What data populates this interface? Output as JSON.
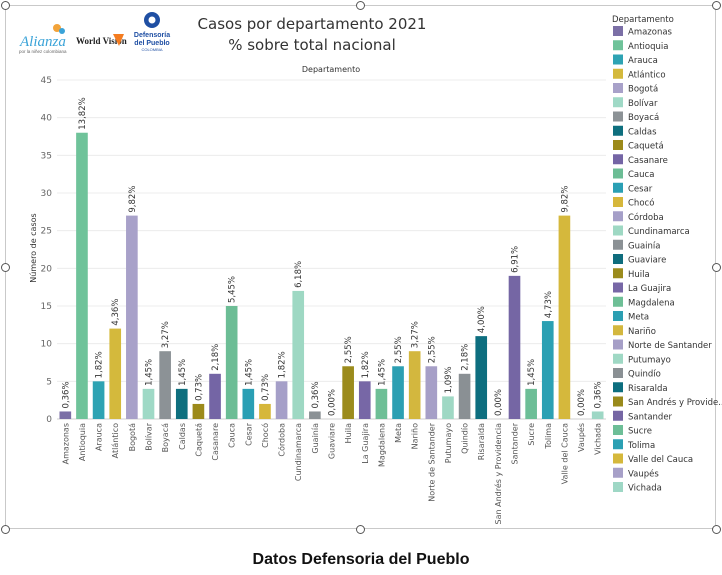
{
  "logos": {
    "alianza": {
      "name": "Alianza",
      "tagline": "por la niñez colombiana",
      "color": "#3aa3d8"
    },
    "worldvision": {
      "name": "World Vision",
      "color": "#f47c20"
    },
    "defensoria": {
      "line1": "Defensoría",
      "line2": "del Pueblo",
      "line3": "COLOMBIA",
      "color": "#1f4fa3"
    }
  },
  "caption": "Datos Defensoria del Pueblo",
  "chart_data": {
    "type": "bar",
    "title": "Casos por departamento 2021",
    "subtitle": "% sobre total nacional",
    "top_axis_label": "Departamento",
    "xlabel": "",
    "ylabel": "Número de casos",
    "ylim": [
      0,
      45
    ],
    "yticks": [
      0,
      5,
      10,
      15,
      20,
      25,
      30,
      35,
      40,
      45
    ],
    "grid": true,
    "legend_title": "Departamento",
    "legend_position": "right",
    "categories": [
      "Amazonas",
      "Antioquia",
      "Arauca",
      "Atlántico",
      "Bogotá",
      "Bolívar",
      "Boyacá",
      "Caldas",
      "Caquetá",
      "Casanare",
      "Cauca",
      "Cesar",
      "Chocó",
      "Córdoba",
      "Cundinamarca",
      "Guainía",
      "Guaviare",
      "Huila",
      "La Guajira",
      "Magdalena",
      "Meta",
      "Nariño",
      "Norte de Santander",
      "Putumayo",
      "Quindío",
      "Risaralda",
      "San Andrés y Providencia",
      "Santander",
      "Sucre",
      "Tolima",
      "Valle del Cauca",
      "Vaupés",
      "Vichada"
    ],
    "legend_labels": [
      "Amazonas",
      "Antioquia",
      "Arauca",
      "Atlántico",
      "Bogotá",
      "Bolívar",
      "Boyacá",
      "Caldas",
      "Caquetá",
      "Casanare",
      "Cauca",
      "Cesar",
      "Chocó",
      "Córdoba",
      "Cundinamarca",
      "Guainía",
      "Guaviare",
      "Huila",
      "La Guajira",
      "Magdalena",
      "Meta",
      "Nariño",
      "Norte de Santander",
      "Putumayo",
      "Quindío",
      "Risaralda",
      "San Andrés y Provide..",
      "Santander",
      "Sucre",
      "Tolima",
      "Valle del Cauca",
      "Vaupés",
      "Vichada"
    ],
    "values": [
      1,
      38,
      5,
      12,
      27,
      4,
      9,
      4,
      2,
      6,
      15,
      4,
      2,
      5,
      17,
      1,
      0,
      7,
      5,
      4,
      7,
      9,
      7,
      3,
      6,
      11,
      0,
      19,
      4,
      13,
      27,
      0,
      1
    ],
    "data_labels": [
      "0,36%",
      "13,82%",
      "1,82%",
      "4,36%",
      "9,82%",
      "1,45%",
      "3,27%",
      "1,45%",
      "0,73%",
      "2,18%",
      "5,45%",
      "1,45%",
      "0,73%",
      "1,82%",
      "6,18%",
      "0,36%",
      "0,00%",
      "2,55%",
      "1,82%",
      "1,45%",
      "2,55%",
      "3,27%",
      "2,55%",
      "1,09%",
      "2,18%",
      "4,00%",
      "0,00%",
      "6,91%",
      "1,45%",
      "4,73%",
      "9,82%",
      "0,00%",
      "0,36%"
    ],
    "colors": [
      "#7b6fa6",
      "#6fc39a",
      "#2ea3b3",
      "#d4b93c",
      "#a8a1c9",
      "#9fd9c6",
      "#8c9296",
      "#0e6f7e",
      "#9c8a1a",
      "#7465a5",
      "#6cbd95",
      "#2a9fb4",
      "#d6b73b",
      "#a59fc8",
      "#9ed8c3",
      "#8b9195",
      "#0f6d7d",
      "#9b8b1c",
      "#7767a6",
      "#6ebf96",
      "#2c9fb2",
      "#d3b73e",
      "#a69fc7",
      "#9fd8c4",
      "#8a9094",
      "#0d6e7f",
      "#998a1b",
      "#7566a4",
      "#6dbe97",
      "#2ba0b3",
      "#d5b83c",
      "#a7a0c8",
      "#9ed7c5"
    ]
  }
}
